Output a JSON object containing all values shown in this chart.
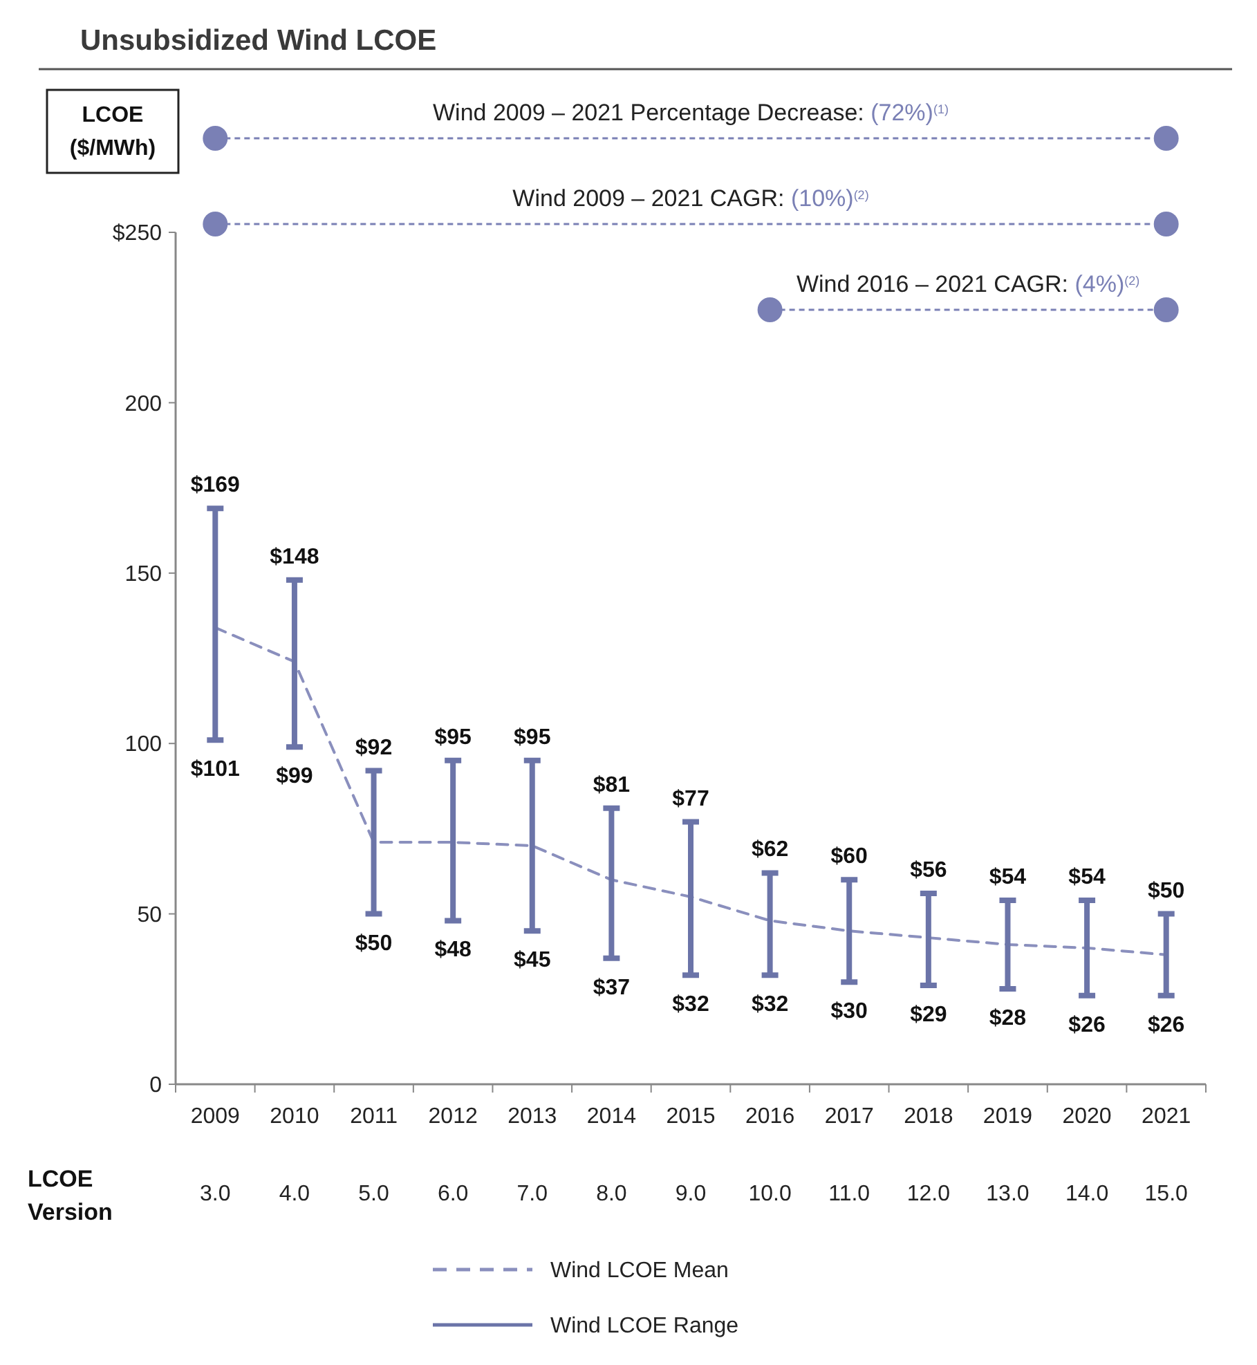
{
  "chart_data": {
    "type": "bar",
    "title": "Unsubsidized Wind LCOE",
    "ylabel": "LCOE ($/MWh)",
    "x2label": "LCOE Version",
    "categories": [
      "2009",
      "2010",
      "2011",
      "2012",
      "2013",
      "2014",
      "2015",
      "2016",
      "2017",
      "2018",
      "2019",
      "2020",
      "2021"
    ],
    "series": [
      {
        "name": "Wind LCOE Mean",
        "type": "line",
        "line_style": "dashed",
        "color": "#8a8fbd",
        "values": [
          134,
          124,
          71,
          71,
          70,
          60,
          55,
          48,
          45,
          43,
          41,
          40,
          38
        ]
      },
      {
        "name": "Wind LCOE Range",
        "type": "bar",
        "color": "#6b74a8",
        "base": [
          101,
          99,
          50,
          48,
          45,
          37,
          32,
          32,
          30,
          29,
          28,
          26,
          26
        ],
        "values": [
          68,
          49,
          42,
          47,
          50,
          44,
          45,
          30,
          30,
          27,
          26,
          28,
          24
        ]
      }
    ],
    "ylim": [
      0,
      250
    ],
    "yticks": [
      0,
      50,
      100,
      150,
      200,
      {
        "value": 250,
        "label": "$250"
      }
    ],
    "x2lim": [
      3,
      15
    ],
    "x2ticks": [
      {
        "value": 3,
        "label": "3.0"
      },
      {
        "value": 4,
        "label": "4.0"
      },
      {
        "value": 5,
        "label": "5.0"
      },
      {
        "value": 6,
        "label": "6.0"
      },
      {
        "value": 7,
        "label": "7.0"
      },
      {
        "value": 8,
        "label": "8.0"
      },
      {
        "value": 9,
        "label": "9.0"
      },
      {
        "value": 10,
        "label": "10.0"
      },
      {
        "value": 11,
        "label": "11.0"
      },
      {
        "value": 12,
        "label": "12.0"
      },
      {
        "value": 13,
        "label": "13.0"
      },
      {
        "value": 14,
        "label": "14.0"
      },
      {
        "value": 15,
        "label": "15.0"
      }
    ],
    "annotations": [
      "Wind 2009 – 2021 Percentage Decrease: (72%)$^{(1)}$",
      "Wind 2009 – 2021 CAGR: (10%)$^{(2)}$",
      "Wind 2016 – 2021 CAGR: (4%)$^{(2)}$",
      {
        "text": "$169",
        "x": "2009",
        "y": 169
      },
      {
        "text": "$101",
        "x": "2009",
        "y": 101
      },
      {
        "text": "$148",
        "x": "2010",
        "y": 148
      },
      {
        "text": "$99",
        "x": "2010",
        "y": 99
      },
      {
        "text": "$92",
        "x": "2011",
        "y": 92
      },
      {
        "text": "$50",
        "x": "2011",
        "y": 50
      },
      {
        "text": "$95",
        "x": "2012",
        "y": 95
      },
      {
        "text": "$48",
        "x": "2012",
        "y": 48
      },
      {
        "text": "$95",
        "x": "2013",
        "y": 95
      },
      {
        "text": "$45",
        "x": "2013",
        "y": 45
      },
      {
        "text": "$81",
        "x": "2014",
        "y": 81
      },
      {
        "text": "$37",
        "x": "2014",
        "y": 37
      },
      {
        "text": "$77",
        "x": "2015",
        "y": 77
      },
      {
        "text": "$32",
        "x": "2015",
        "y": 32
      },
      {
        "text": "$62",
        "x": "2016",
        "y": 62
      },
      {
        "text": "$32",
        "x": "2016",
        "y": 32
      },
      {
        "text": "$60",
        "x": "2017",
        "y": 60
      },
      {
        "text": "$30",
        "x": "2017",
        "y": 30
      },
      {
        "text": "$56",
        "x": "2018",
        "y": 56
      },
      {
        "text": "$29",
        "x": "2018",
        "y": 29
      },
      {
        "text": "$54",
        "x": "2019",
        "y": 54
      },
      {
        "text": "$28",
        "x": "2019",
        "y": 28
      },
      {
        "text": "$54",
        "x": "2020",
        "y": 54
      },
      {
        "text": "$26",
        "x": "2020",
        "y": 26
      },
      {
        "text": "$50",
        "x": "2021",
        "y": 50
      },
      {
        "text": "$26",
        "x": "2021",
        "y": 26
      }
    ],
    "grid": false,
    "legend": "bottom",
    "marker": "none"
  }
}
